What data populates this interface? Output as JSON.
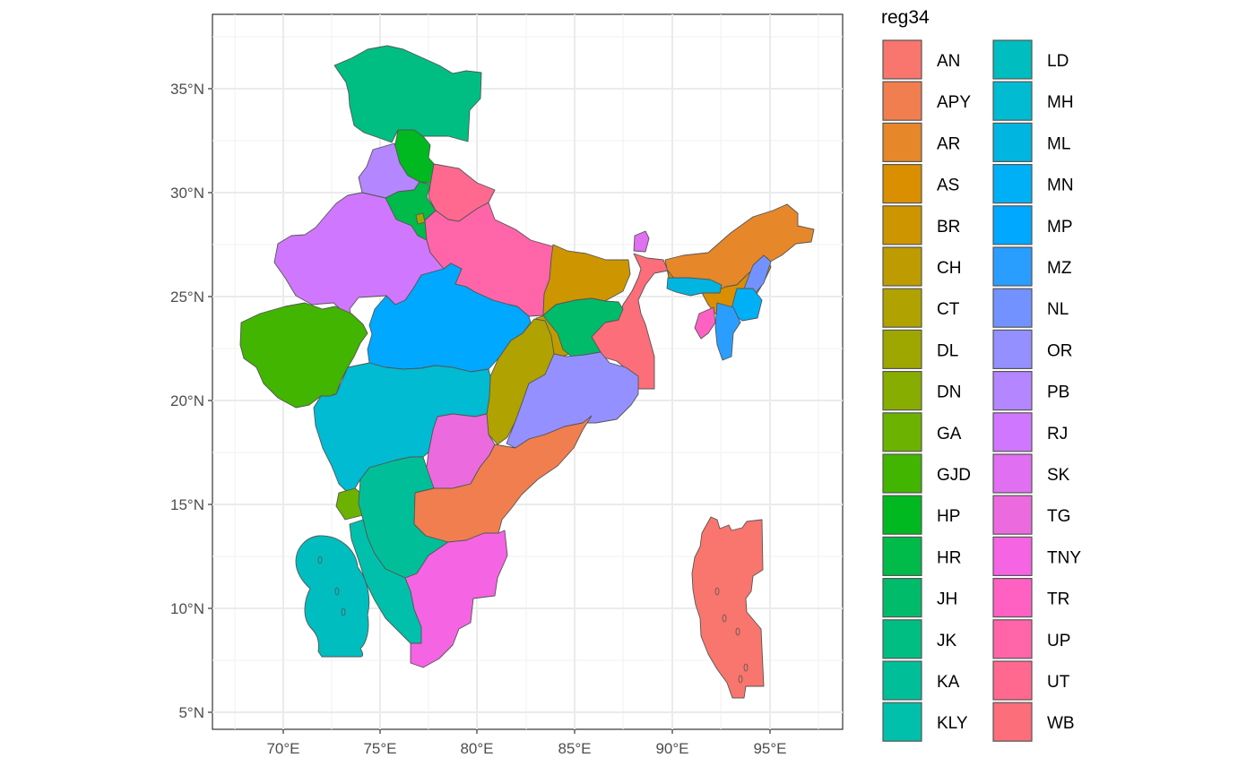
{
  "map": {
    "x_ticks": [
      "70°E",
      "75°E",
      "80°E",
      "85°E",
      "90°E",
      "95°E"
    ],
    "y_ticks": [
      "5°N",
      "10°N",
      "15°N",
      "20°N",
      "25°N",
      "30°N",
      "35°N"
    ],
    "grid": true
  },
  "legend": {
    "title": "reg34",
    "items": [
      {
        "code": "AN",
        "color": "#F8766D"
      },
      {
        "code": "APY",
        "color": "#F17E4F"
      },
      {
        "code": "AR",
        "color": "#E6872A"
      },
      {
        "code": "AS",
        "color": "#DA8F00"
      },
      {
        "code": "BR",
        "color": "#CD9600"
      },
      {
        "code": "CH",
        "color": "#BE9C00"
      },
      {
        "code": "CT",
        "color": "#B0A200"
      },
      {
        "code": "DL",
        "color": "#9DA700"
      },
      {
        "code": "DN",
        "color": "#87AD00"
      },
      {
        "code": "GA",
        "color": "#6CB200"
      },
      {
        "code": "GJD",
        "color": "#42B500"
      },
      {
        "code": "HP",
        "color": "#00B81F"
      },
      {
        "code": "HR",
        "color": "#00BA4A"
      },
      {
        "code": "JH",
        "color": "#00BC6A"
      },
      {
        "code": "JK",
        "color": "#00BE82"
      },
      {
        "code": "KA",
        "color": "#00BF98"
      },
      {
        "code": "KLY",
        "color": "#00C0AC"
      },
      {
        "code": "LD",
        "color": "#00BDBF"
      },
      {
        "code": "MH",
        "color": "#00BBD1"
      },
      {
        "code": "ML",
        "color": "#00B5E0"
      },
      {
        "code": "MN",
        "color": "#00B0F6"
      },
      {
        "code": "MP",
        "color": "#00A8FF"
      },
      {
        "code": "MZ",
        "color": "#2A9EFF"
      },
      {
        "code": "NL",
        "color": "#7293FF"
      },
      {
        "code": "OR",
        "color": "#9590FF"
      },
      {
        "code": "PB",
        "color": "#B486FF"
      },
      {
        "code": "RJ",
        "color": "#CF78FF"
      },
      {
        "code": "SK",
        "color": "#E06FF1"
      },
      {
        "code": "TG",
        "color": "#EB6BDE"
      },
      {
        "code": "TNY",
        "color": "#F564E3"
      },
      {
        "code": "TR",
        "color": "#FF61C3"
      },
      {
        "code": "UP",
        "color": "#FF65A8"
      },
      {
        "code": "UT",
        "color": "#FF6990"
      },
      {
        "code": "WB",
        "color": "#FB6E7A"
      }
    ]
  }
}
